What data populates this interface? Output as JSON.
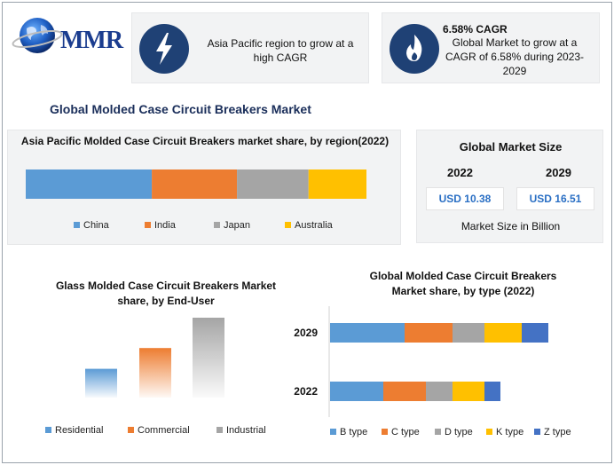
{
  "logo": {
    "text": "MMR"
  },
  "highlights": [
    {
      "icon": "lightning-icon",
      "text": "Asia Pacific region to grow at a high CAGR"
    },
    {
      "icon": "flame-icon",
      "title": "6.58% CAGR",
      "text": "Global Market to grow at a CAGR of 6.58% during 2023-2029"
    }
  ],
  "main_title": "Global Molded Case Circuit Breakers Market",
  "market_size": {
    "title": "Global Market Size",
    "years": [
      "2022",
      "2029"
    ],
    "values": [
      "USD 10.38",
      "USD 16.51"
    ],
    "note": "Market Size in Billion"
  },
  "colors": {
    "blue": "#5b9bd5",
    "orange": "#ed7d31",
    "gray": "#a5a5a5",
    "yellow": "#ffc000",
    "navy": "#4472c4"
  },
  "chart_data": [
    {
      "type": "bar",
      "orientation": "horizontal-stacked-100",
      "title": "Asia Pacific Molded Case Circuit Breakers market share, by region(2022)",
      "series": [
        {
          "name": "China",
          "values": [
            0.37
          ],
          "color": "#5b9bd5"
        },
        {
          "name": "India",
          "values": [
            0.25
          ],
          "color": "#ed7d31"
        },
        {
          "name": "Japan",
          "values": [
            0.21
          ],
          "color": "#a5a5a5"
        },
        {
          "name": "Australia",
          "values": [
            0.17
          ],
          "color": "#ffc000"
        }
      ]
    },
    {
      "type": "bar",
      "title": "Glass Molded Case Circuit Breakers Market share, by End-User",
      "categories": [
        "Residential",
        "Commercial",
        "Industrial"
      ],
      "values": [
        0.36,
        0.62,
        1.0
      ],
      "colors": [
        "#5b9bd5",
        "#ed7d31",
        "#a5a5a5"
      ],
      "gradient": true
    },
    {
      "type": "bar",
      "orientation": "horizontal-stacked",
      "title": "Global Molded Case Circuit Breakers Market share, by type (2022)",
      "categories": [
        "2029",
        "2022"
      ],
      "series": [
        {
          "name": "B type",
          "values": [
            84,
            60
          ],
          "color": "#5b9bd5"
        },
        {
          "name": "C type",
          "values": [
            54,
            48
          ],
          "color": "#ed7d31"
        },
        {
          "name": "D type",
          "values": [
            36,
            30
          ],
          "color": "#a5a5a5"
        },
        {
          "name": "K type",
          "values": [
            42,
            36
          ],
          "color": "#ffc000"
        },
        {
          "name": "Z type",
          "values": [
            30,
            18
          ],
          "color": "#4472c4"
        }
      ]
    }
  ]
}
